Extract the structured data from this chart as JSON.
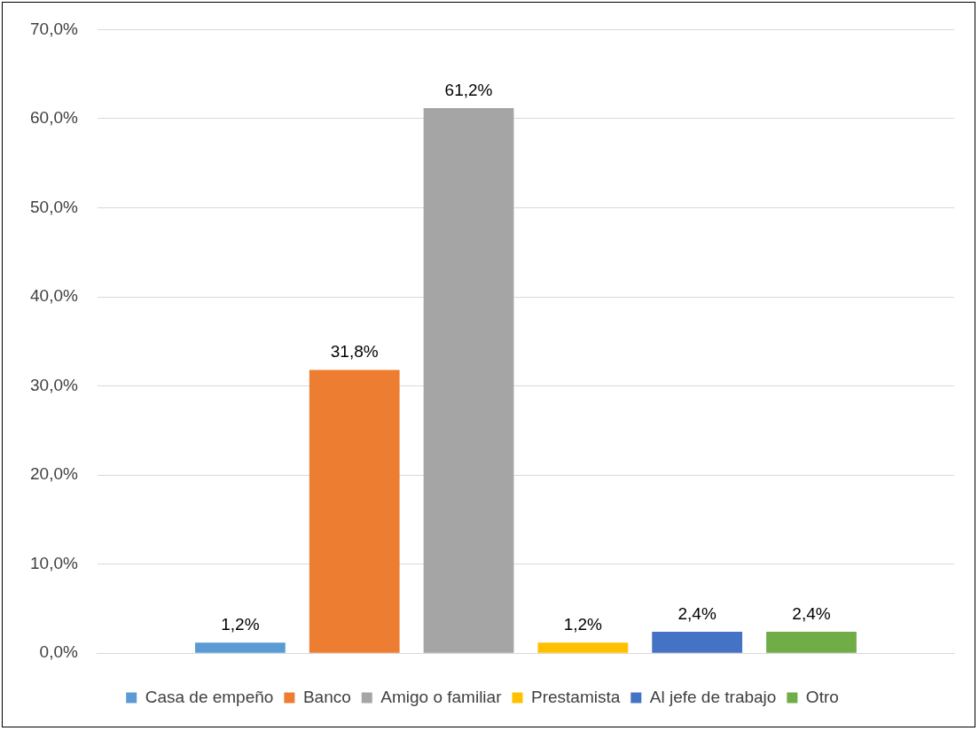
{
  "chart_data": {
    "type": "bar",
    "categories": [
      null
    ],
    "series": [
      {
        "name": "Casa de empeño",
        "color": "#5b9bd5",
        "values": [
          1.2
        ],
        "value_labels": [
          "1,2%"
        ]
      },
      {
        "name": "Banco",
        "color": "#ed7d31",
        "values": [
          31.8
        ],
        "value_labels": [
          "31,8%"
        ]
      },
      {
        "name": "Amigo o familiar",
        "color": "#a5a5a5",
        "values": [
          61.2
        ],
        "value_labels": [
          "61,2%"
        ]
      },
      {
        "name": "Prestamista",
        "color": "#ffc000",
        "values": [
          1.2
        ],
        "value_labels": [
          "1,2%"
        ]
      },
      {
        "name": "Al jefe de trabajo",
        "color": "#4472c4",
        "values": [
          2.4
        ],
        "value_labels": [
          "2,4%"
        ]
      },
      {
        "name": "Otro",
        "color": "#70ad47",
        "values": [
          2.4
        ],
        "value_labels": [
          "2,4%"
        ]
      }
    ],
    "ylim": [
      0,
      70
    ],
    "yticks": [
      {
        "value": 0,
        "label": "0,0%"
      },
      {
        "value": 10,
        "label": "10,0%"
      },
      {
        "value": 20,
        "label": "20,0%"
      },
      {
        "value": 30,
        "label": "30,0%"
      },
      {
        "value": 40,
        "label": "40,0%"
      },
      {
        "value": 50,
        "label": "50,0%"
      },
      {
        "value": 60,
        "label": "60,0%"
      },
      {
        "value": 70,
        "label": "70,0%"
      }
    ],
    "grid": "y",
    "legend": "bottom"
  }
}
